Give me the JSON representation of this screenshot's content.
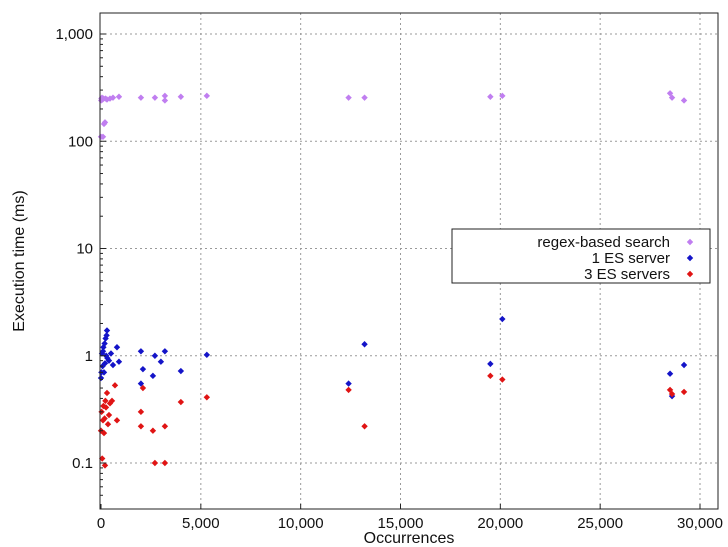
{
  "chart_data": {
    "type": "scatter",
    "xlabel": "Occurrences",
    "ylabel": "Execution time (ms)",
    "x_scale": "linear",
    "y_scale": "log",
    "xlim": [
      0,
      30000
    ],
    "ylim": [
      0.05,
      1000
    ],
    "x_ticks": [
      0,
      5000,
      10000,
      15000,
      20000,
      25000,
      30000
    ],
    "x_tick_labels": [
      "0",
      "5,000",
      "10,000",
      "15,000",
      "20,000",
      "25,000",
      "30,000"
    ],
    "y_ticks": [
      0.1,
      1,
      10,
      100,
      1000
    ],
    "y_tick_labels": [
      "0.1",
      "1",
      "10",
      "100",
      "1,000"
    ],
    "grid": true,
    "legend_position": "right",
    "series": [
      {
        "name": "regex-based search",
        "color": "#c07ef0",
        "marker": "diamond",
        "points": [
          [
            0,
            110
          ],
          [
            10,
            240
          ],
          [
            20,
            250
          ],
          [
            50,
            255
          ],
          [
            80,
            245
          ],
          [
            100,
            110
          ],
          [
            130,
            250
          ],
          [
            150,
            145
          ],
          [
            200,
            150
          ],
          [
            230,
            250
          ],
          [
            300,
            245
          ],
          [
            450,
            250
          ],
          [
            600,
            255
          ],
          [
            900,
            260
          ],
          [
            2000,
            255
          ],
          [
            2700,
            255
          ],
          [
            3200,
            240
          ],
          [
            3200,
            265
          ],
          [
            4000,
            260
          ],
          [
            5300,
            265
          ],
          [
            12400,
            255
          ],
          [
            13200,
            255
          ],
          [
            19500,
            260
          ],
          [
            20100,
            265
          ],
          [
            28500,
            280
          ],
          [
            28600,
            255
          ],
          [
            29200,
            240
          ]
        ]
      },
      {
        "name": "1 ES server",
        "color": "#1414c8",
        "marker": "diamond",
        "points": [
          [
            0,
            0.62
          ],
          [
            20,
            0.7
          ],
          [
            50,
            1.05
          ],
          [
            80,
            0.8
          ],
          [
            100,
            1.1
          ],
          [
            120,
            1.2
          ],
          [
            150,
            0.7
          ],
          [
            180,
            1.3
          ],
          [
            200,
            0.85
          ],
          [
            230,
            1.45
          ],
          [
            260,
            1.0
          ],
          [
            280,
            1.55
          ],
          [
            300,
            1.72
          ],
          [
            320,
            0.95
          ],
          [
            400,
            0.9
          ],
          [
            500,
            1.05
          ],
          [
            600,
            0.82
          ],
          [
            800,
            1.2
          ],
          [
            900,
            0.88
          ],
          [
            2000,
            1.1
          ],
          [
            2000,
            0.55
          ],
          [
            2100,
            0.75
          ],
          [
            2600,
            0.65
          ],
          [
            2700,
            1.0
          ],
          [
            3000,
            0.88
          ],
          [
            3200,
            1.1
          ],
          [
            4000,
            0.72
          ],
          [
            5300,
            1.02
          ],
          [
            12400,
            0.55
          ],
          [
            13200,
            1.28
          ],
          [
            19500,
            0.84
          ],
          [
            20100,
            2.2
          ],
          [
            28500,
            0.68
          ],
          [
            28600,
            0.42
          ],
          [
            29200,
            0.82
          ]
        ]
      },
      {
        "name": "3 ES servers",
        "color": "#e01414",
        "marker": "diamond",
        "points": [
          [
            0,
            0.2
          ],
          [
            30,
            0.3
          ],
          [
            60,
            0.11
          ],
          [
            100,
            0.25
          ],
          [
            120,
            0.34
          ],
          [
            150,
            0.19
          ],
          [
            180,
            0.26
          ],
          [
            200,
            0.095
          ],
          [
            220,
            0.38
          ],
          [
            250,
            0.33
          ],
          [
            300,
            0.45
          ],
          [
            350,
            0.23
          ],
          [
            400,
            0.28
          ],
          [
            450,
            0.36
          ],
          [
            550,
            0.38
          ],
          [
            700,
            0.53
          ],
          [
            800,
            0.25
          ],
          [
            2000,
            0.3
          ],
          [
            2000,
            0.22
          ],
          [
            2100,
            0.5
          ],
          [
            2600,
            0.2
          ],
          [
            2700,
            0.1
          ],
          [
            3200,
            0.22
          ],
          [
            3200,
            0.1
          ],
          [
            4000,
            0.37
          ],
          [
            5300,
            0.41
          ],
          [
            12400,
            0.48
          ],
          [
            13200,
            0.22
          ],
          [
            19500,
            0.65
          ],
          [
            20100,
            0.6
          ],
          [
            28500,
            0.48
          ],
          [
            28600,
            0.44
          ],
          [
            29200,
            0.46
          ]
        ]
      }
    ]
  }
}
